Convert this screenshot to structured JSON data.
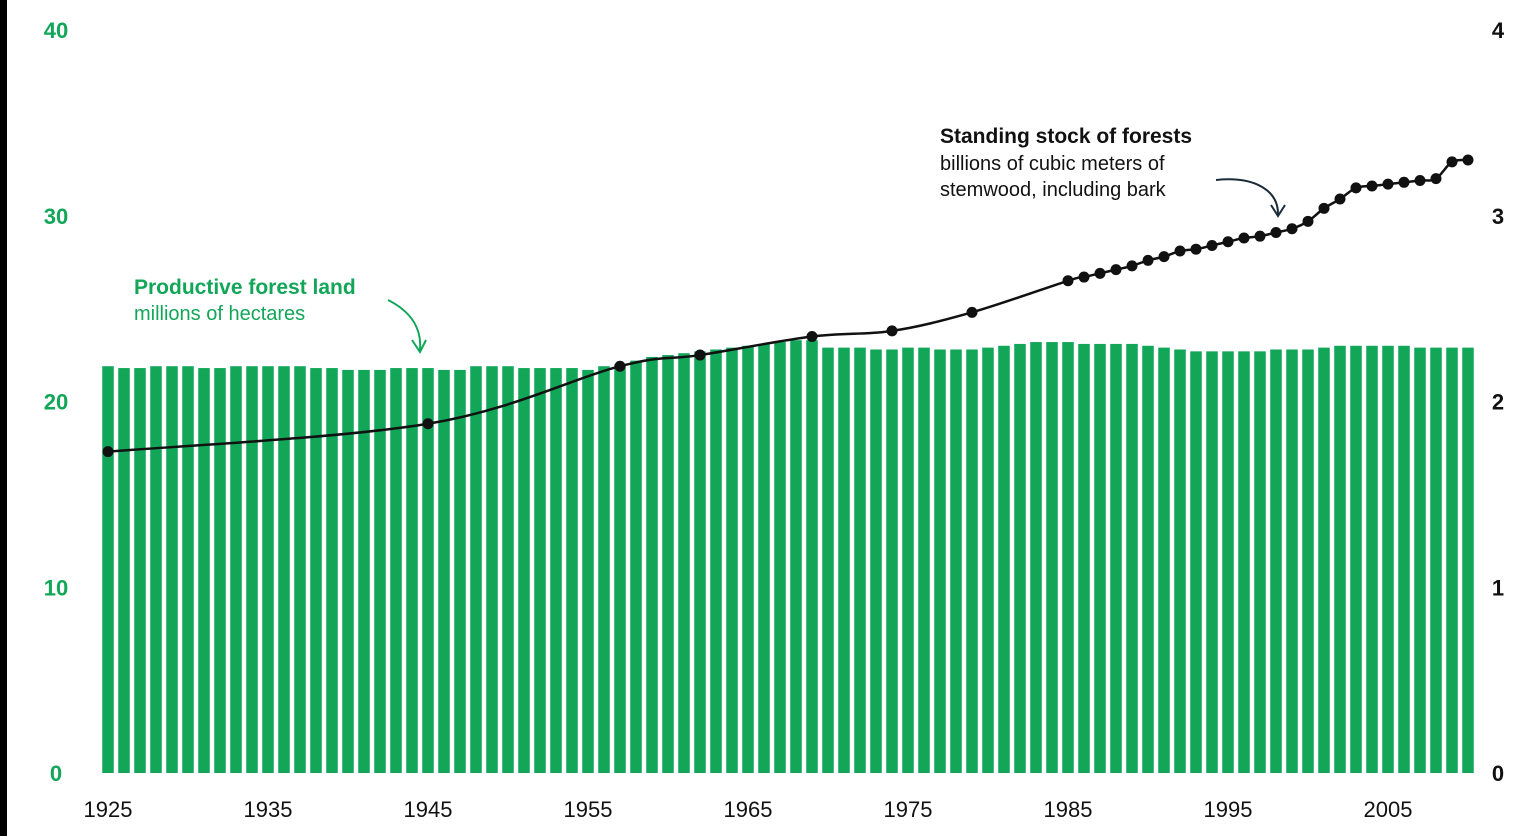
{
  "chart_data": {
    "type": "bar+line",
    "x_range": [
      1925,
      2010
    ],
    "x_ticks": [
      "1925",
      "1935",
      "1945",
      "1955",
      "1965",
      "1975",
      "1985",
      "1995",
      "2005"
    ],
    "left_axis": {
      "ylim": [
        0,
        40
      ],
      "ticks": [
        "0",
        "10",
        "20",
        "30",
        "40"
      ],
      "color": "#12a659"
    },
    "right_axis": {
      "ylim": [
        0,
        4
      ],
      "ticks": [
        "0",
        "1",
        "2",
        "3",
        "4"
      ],
      "color": "#111111"
    },
    "bar_series": {
      "name": "Productive forest land",
      "unit": "millions of hectares",
      "color": "#12a659",
      "years": [
        1925,
        1926,
        1927,
        1928,
        1929,
        1930,
        1931,
        1932,
        1933,
        1934,
        1935,
        1936,
        1937,
        1938,
        1939,
        1940,
        1941,
        1942,
        1943,
        1944,
        1945,
        1946,
        1947,
        1948,
        1949,
        1950,
        1951,
        1952,
        1953,
        1954,
        1955,
        1956,
        1957,
        1958,
        1959,
        1960,
        1961,
        1962,
        1963,
        1964,
        1965,
        1966,
        1967,
        1968,
        1969,
        1970,
        1971,
        1972,
        1973,
        1974,
        1975,
        1976,
        1977,
        1978,
        1979,
        1980,
        1981,
        1982,
        1983,
        1984,
        1985,
        1986,
        1987,
        1988,
        1989,
        1990,
        1991,
        1992,
        1993,
        1994,
        1995,
        1996,
        1997,
        1998,
        1999,
        2000,
        2001,
        2002,
        2003,
        2004,
        2005,
        2006,
        2007,
        2008,
        2009,
        2010
      ],
      "values": [
        21.9,
        21.8,
        21.8,
        21.9,
        21.9,
        21.9,
        21.8,
        21.8,
        21.9,
        21.9,
        21.9,
        21.9,
        21.9,
        21.8,
        21.8,
        21.7,
        21.7,
        21.7,
        21.8,
        21.8,
        21.8,
        21.7,
        21.7,
        21.9,
        21.9,
        21.9,
        21.8,
        21.8,
        21.8,
        21.8,
        21.7,
        21.9,
        22.0,
        22.2,
        22.4,
        22.5,
        22.6,
        22.7,
        22.8,
        22.9,
        23.0,
        23.1,
        23.2,
        23.3,
        23.3,
        22.9,
        22.9,
        22.9,
        22.8,
        22.8,
        22.9,
        22.9,
        22.8,
        22.8,
        22.8,
        22.9,
        23.0,
        23.1,
        23.2,
        23.2,
        23.2,
        23.1,
        23.1,
        23.1,
        23.1,
        23.0,
        22.9,
        22.8,
        22.7,
        22.7,
        22.7,
        22.7,
        22.7,
        22.8,
        22.8,
        22.8,
        22.9,
        23.0,
        23.0,
        23.0,
        23.0,
        23.0,
        22.9,
        22.9,
        22.9,
        22.9
      ]
    },
    "line_series": {
      "name": "Standing stock of forests",
      "unit": "billions of cubic meters of stemwood, including bark",
      "color": "#111111",
      "points": [
        [
          1925,
          1.73
        ],
        [
          1945,
          1.88
        ],
        [
          1957,
          2.19
        ],
        [
          1962,
          2.25
        ],
        [
          1969,
          2.35
        ],
        [
          1974,
          2.38
        ],
        [
          1979,
          2.48
        ],
        [
          1985,
          2.65
        ],
        [
          1986,
          2.67
        ],
        [
          1987,
          2.69
        ],
        [
          1988,
          2.71
        ],
        [
          1989,
          2.73
        ],
        [
          1990,
          2.76
        ],
        [
          1991,
          2.78
        ],
        [
          1992,
          2.81
        ],
        [
          1993,
          2.82
        ],
        [
          1994,
          2.84
        ],
        [
          1995,
          2.86
        ],
        [
          1996,
          2.88
        ],
        [
          1997,
          2.89
        ],
        [
          1998,
          2.91
        ],
        [
          1999,
          2.93
        ],
        [
          2000,
          2.97
        ],
        [
          2001,
          3.04
        ],
        [
          2002,
          3.09
        ],
        [
          2003,
          3.15
        ],
        [
          2004,
          3.16
        ],
        [
          2005,
          3.17
        ],
        [
          2006,
          3.18
        ],
        [
          2007,
          3.19
        ],
        [
          2008,
          3.2
        ],
        [
          2009,
          3.29
        ],
        [
          2010,
          3.3
        ]
      ]
    },
    "annotations": {
      "bar_title": "Productive forest land",
      "bar_subtitle": "millions of hectares",
      "line_title": "Standing stock of forests",
      "line_subtitle_1": "billions of cubic meters of",
      "line_subtitle_2": "stemwood, including bark"
    },
    "grid": false,
    "legend": "inline-annotations"
  }
}
